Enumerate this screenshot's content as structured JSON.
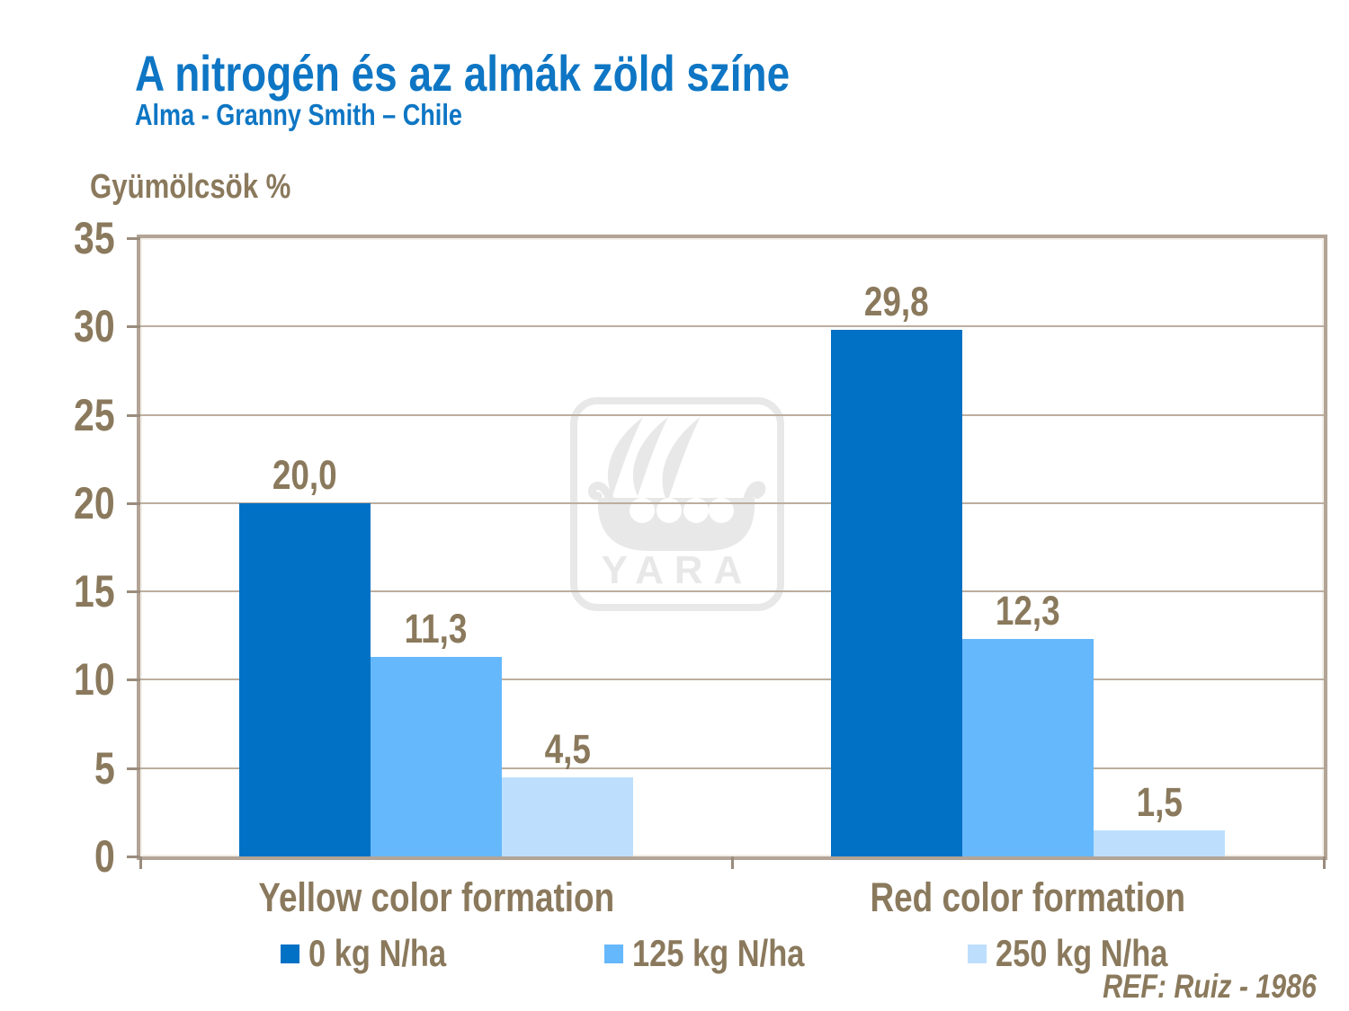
{
  "page": {
    "title": "A nitrogén és az almák zöld színe",
    "subtitle": "Alma - Granny Smith – Chile",
    "footer_ref": "REF: Ruiz - 1986",
    "watermark": "YARA"
  },
  "colors": {
    "title_blue": "#0e76c4",
    "text_brown": "#8a795c",
    "frame_tan": "#b2a496",
    "gridline_tan": "#bcae9e",
    "watermark_gray": "#e8e8e8"
  },
  "chart_data": {
    "type": "bar",
    "title": "A nitrogén és az almák zöld színe",
    "subtitle": "Alma - Granny Smith – Chile",
    "ylabel": "Gyümölcsök %",
    "xlabel": "",
    "ylim": [
      0,
      35
    ],
    "yticks": [
      0,
      5,
      10,
      15,
      20,
      25,
      30,
      35
    ],
    "grid": true,
    "legend_position": "bottom",
    "categories": [
      "Yellow color formation",
      "Red color formation"
    ],
    "series": [
      {
        "name": "0 kg N/ha",
        "color": "#0071C5",
        "values": [
          20.0,
          29.8
        ],
        "value_labels": [
          "20,0",
          "29,8"
        ]
      },
      {
        "name": "125 kg N/ha",
        "color": "#66B8FC",
        "values": [
          11.3,
          12.3
        ],
        "value_labels": [
          "11,3",
          "12,3"
        ]
      },
      {
        "name": "250 kg N/ha",
        "color": "#BDDFFD",
        "values": [
          4.5,
          1.5
        ],
        "value_labels": [
          "4,5",
          "1,5"
        ]
      }
    ],
    "annotation": "REF: Ruiz - 1986"
  }
}
